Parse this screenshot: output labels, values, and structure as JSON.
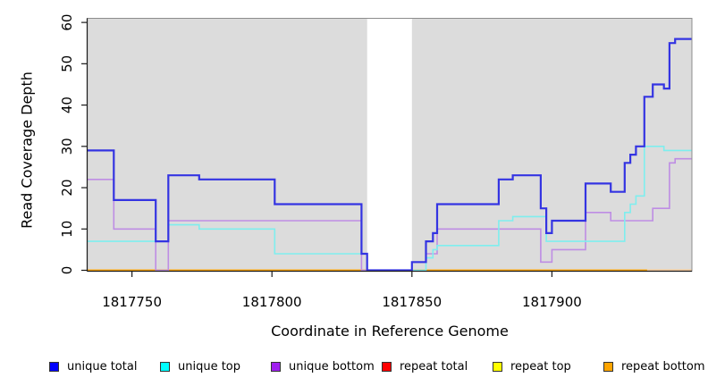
{
  "chart_data": {
    "type": "line",
    "subtype": "step",
    "title": "",
    "xlabel": "Coordinate in Reference Genome",
    "ylabel": "Read Coverage Depth",
    "xlim": [
      1817734,
      1817950
    ],
    "ylim": [
      0,
      61
    ],
    "x_ticks": [
      1817750,
      1817800,
      1817850,
      1817900
    ],
    "y_ticks": [
      0,
      10,
      20,
      30,
      40,
      50,
      60
    ],
    "grid": false,
    "plot_bg_color": "#dcdcdc",
    "box_color": "#8c8c8c",
    "axis_color": "#1a1a1a",
    "masked_region": {
      "from": 1817834,
      "to": 1817850,
      "color": "#ffffff"
    },
    "series": [
      {
        "name": "repeat total",
        "color": "#ff0000",
        "width": 1.4,
        "points": [
          [
            1817734,
            0
          ]
        ]
      },
      {
        "name": "repeat top",
        "color": "#ffff00",
        "width": 1.4,
        "points": [
          [
            1817734,
            0
          ]
        ]
      },
      {
        "name": "repeat bottom",
        "color": "#ffa500",
        "width": 1.8,
        "points": [
          [
            1817734,
            0
          ]
        ],
        "fade": {
          "from": 1817934,
          "color": "#ffd2a6"
        }
      },
      {
        "name": "unique bottom",
        "color": "#be8de4",
        "width": 1.6,
        "points": [
          [
            1817734,
            22
          ],
          [
            1817743.5,
            10
          ],
          [
            1817758.5,
            0
          ],
          [
            1817763,
            12
          ],
          [
            1817832,
            0
          ],
          [
            1817850,
            2
          ],
          [
            1817855,
            4
          ],
          [
            1817859,
            10
          ],
          [
            1817896,
            2
          ],
          [
            1817900,
            5
          ],
          [
            1817912,
            14
          ],
          [
            1817921,
            12
          ],
          [
            1817936,
            15
          ],
          [
            1817942,
            26
          ],
          [
            1817944,
            27
          ]
        ]
      },
      {
        "name": "unique top",
        "color": "#7eeeee",
        "width": 1.6,
        "points": [
          [
            1817734,
            7
          ],
          [
            1817763,
            11
          ],
          [
            1817774,
            10
          ],
          [
            1817801,
            4
          ],
          [
            1817834,
            0
          ],
          [
            1817855,
            3
          ],
          [
            1817857.5,
            5
          ],
          [
            1817859,
            6
          ],
          [
            1817881,
            12
          ],
          [
            1817886,
            13
          ],
          [
            1817898,
            7
          ],
          [
            1817926,
            14
          ],
          [
            1817928,
            16
          ],
          [
            1817930,
            18
          ],
          [
            1817933,
            30
          ],
          [
            1817940,
            29
          ]
        ]
      },
      {
        "name": "unique total",
        "color": "#3434e2",
        "width": 2.2,
        "points": [
          [
            1817734,
            29
          ],
          [
            1817743.5,
            17
          ],
          [
            1817758.5,
            7
          ],
          [
            1817763,
            23
          ],
          [
            1817774,
            22
          ],
          [
            1817801,
            16
          ],
          [
            1817832,
            4
          ],
          [
            1817834,
            0
          ],
          [
            1817850,
            2
          ],
          [
            1817855,
            7
          ],
          [
            1817857.5,
            9
          ],
          [
            1817859,
            16
          ],
          [
            1817881,
            22
          ],
          [
            1817886,
            23
          ],
          [
            1817896,
            15
          ],
          [
            1817898,
            9
          ],
          [
            1817900,
            12
          ],
          [
            1817912,
            21
          ],
          [
            1817921,
            19
          ],
          [
            1817926,
            26
          ],
          [
            1817928,
            28
          ],
          [
            1817930,
            30
          ],
          [
            1817933,
            42
          ],
          [
            1817936,
            45
          ],
          [
            1817940,
            44
          ],
          [
            1817942,
            55
          ],
          [
            1817944,
            56
          ]
        ]
      }
    ],
    "legend": [
      {
        "label": "unique total",
        "color": "#0000ff"
      },
      {
        "label": "unique top",
        "color": "#00ffff"
      },
      {
        "label": "unique bottom",
        "color": "#a020f0"
      },
      {
        "label": "repeat total",
        "color": "#ff0000"
      },
      {
        "label": "repeat top",
        "color": "#ffff00"
      },
      {
        "label": "repeat bottom",
        "color": "#ffa500"
      }
    ],
    "legend_position": "bottom"
  }
}
